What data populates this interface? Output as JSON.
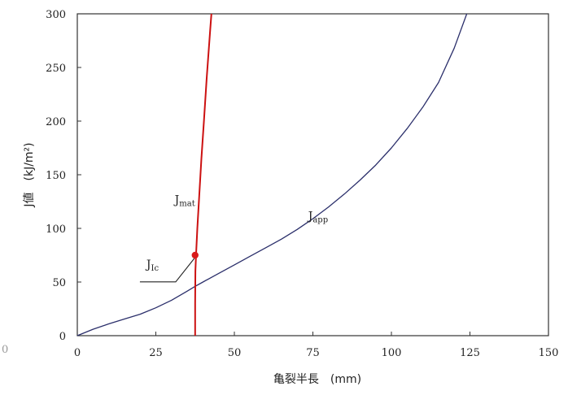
{
  "chart_data": {
    "type": "line",
    "xlabel": "亀裂半長　(mm)",
    "ylabel": "J値　(kJ/m²)",
    "xlim": [
      0,
      150
    ],
    "ylim": [
      0,
      300
    ],
    "xticks": [
      0,
      25,
      50,
      75,
      100,
      125,
      150
    ],
    "yticks": [
      0,
      50,
      100,
      150,
      200,
      250,
      300
    ],
    "grid": false,
    "series": [
      {
        "name": "Japp",
        "color": "#2b2f6b",
        "x": [
          0,
          5,
          10,
          15,
          20,
          25,
          30,
          35,
          37.5,
          40,
          45,
          50,
          55,
          60,
          65,
          70,
          75,
          80,
          85,
          90,
          95,
          100,
          105,
          110,
          115,
          120,
          124
        ],
        "y": [
          0,
          6,
          11,
          15.5,
          20,
          26,
          33,
          41.5,
          46,
          50,
          58,
          66,
          74,
          82,
          90,
          99,
          109,
          120,
          132,
          145,
          159,
          175,
          193,
          213,
          236,
          268,
          300
        ]
      },
      {
        "name": "Jmat",
        "color": "#cc1111",
        "x": [
          37.5,
          37.5,
          37.6,
          37.8,
          38.2,
          38.8,
          39.5,
          40.3,
          41.2,
          42.3,
          42.7
        ],
        "y": [
          0,
          30,
          60,
          75,
          100,
          130,
          165,
          200,
          240,
          285,
          300
        ]
      }
    ],
    "annotations": [
      {
        "main": "J",
        "sub": "mat",
        "x": 31,
        "y": 123
      },
      {
        "main": "J",
        "sub": "app",
        "x": 73.5,
        "y": 108
      },
      {
        "main": "J",
        "sub": "Ic",
        "x": 22,
        "y": 63
      }
    ],
    "jic_point": {
      "x": 37.5,
      "y": 75,
      "color": "#d91a1a"
    },
    "stray_marks": [
      "0"
    ]
  }
}
